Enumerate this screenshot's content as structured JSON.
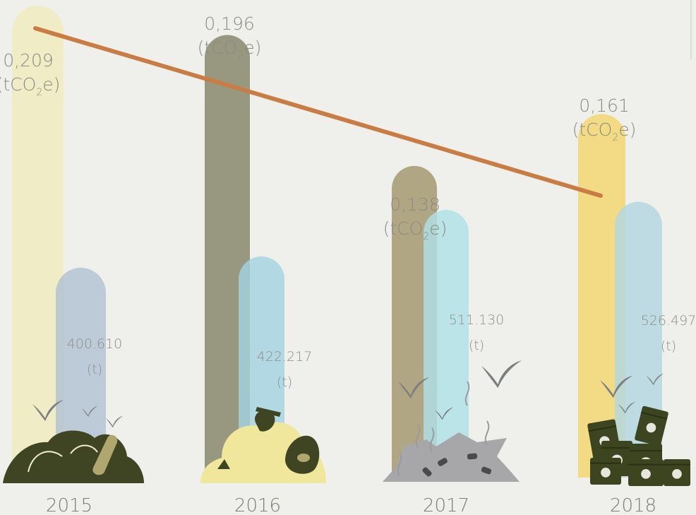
{
  "chart_data": {
    "type": "bar",
    "categories": [
      "2015",
      "2016",
      "2017",
      "2018"
    ],
    "series": [
      {
        "values": [
          0.209,
          0.196,
          0.138,
          0.161
        ],
        "labels": [
          "0,209",
          "0,196",
          "0,138",
          "0,161"
        ],
        "unit_prefix": "(tCO",
        "unit_sub": "2",
        "unit_suffix": "e)"
      },
      {
        "values": [
          400610,
          422217,
          511130,
          526497
        ],
        "labels": [
          "400.610",
          "422.217",
          "511.130",
          "526.497"
        ],
        "unit": "(t)"
      }
    ],
    "line": {
      "series_index": 0,
      "color": "#c97c44"
    },
    "colors": {
      "emissions": [
        "#efecc6",
        "#98977f",
        "#b0a684",
        "#f2db84"
      ],
      "tonnage": [
        "#b2c1d3",
        "#a5d3e0",
        "#aee0e6",
        "#b3d6e2"
      ],
      "heap": [
        "#3f4422",
        "#f0e79c",
        "#a7a7a9",
        "#3d4420"
      ]
    },
    "icons": [
      "heap-icon",
      "money-bag-icon",
      "scrap-pile-icon",
      "toxic-barrel-icon",
      "bird-icon"
    ]
  }
}
